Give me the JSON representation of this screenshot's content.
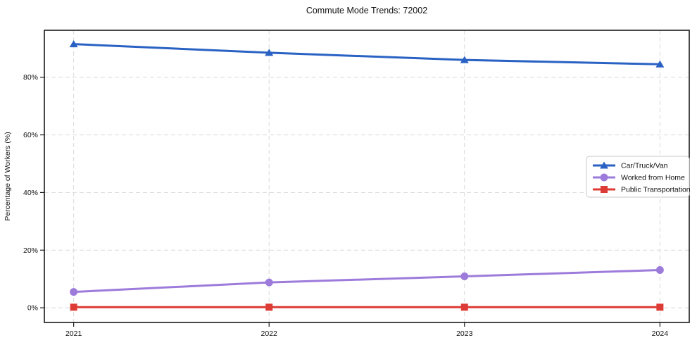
{
  "chart_data": {
    "type": "line",
    "title": "Commute Mode Trends: 72002",
    "xlabel": "",
    "ylabel": "Percentage of Workers (%)",
    "x": [
      2021,
      2022,
      2023,
      2024
    ],
    "series": [
      {
        "name": "Car/Truck/Van",
        "values": [
          91.5,
          88.5,
          86.0,
          84.5
        ],
        "color": "#2a62c4",
        "marker": "triangle"
      },
      {
        "name": "Worked from Home",
        "values": [
          5.5,
          8.8,
          10.9,
          13.1
        ],
        "color": "#9d7bdb",
        "marker": "circle"
      },
      {
        "name": "Public Transportation",
        "values": [
          0.2,
          0.2,
          0.2,
          0.2
        ],
        "color": "#dd3b36",
        "marker": "square"
      }
    ],
    "yticks": [
      0,
      20,
      40,
      60,
      80
    ],
    "ytick_labels": [
      "0%",
      "20%",
      "40%",
      "60%",
      "80%"
    ],
    "xtick_labels": [
      "2021",
      "2022",
      "2023",
      "2024"
    ],
    "ylim": [
      -5.1,
      96.3
    ],
    "xlim": [
      2020.85,
      2024.15
    ],
    "grid": true,
    "legend_position": "center-right"
  }
}
